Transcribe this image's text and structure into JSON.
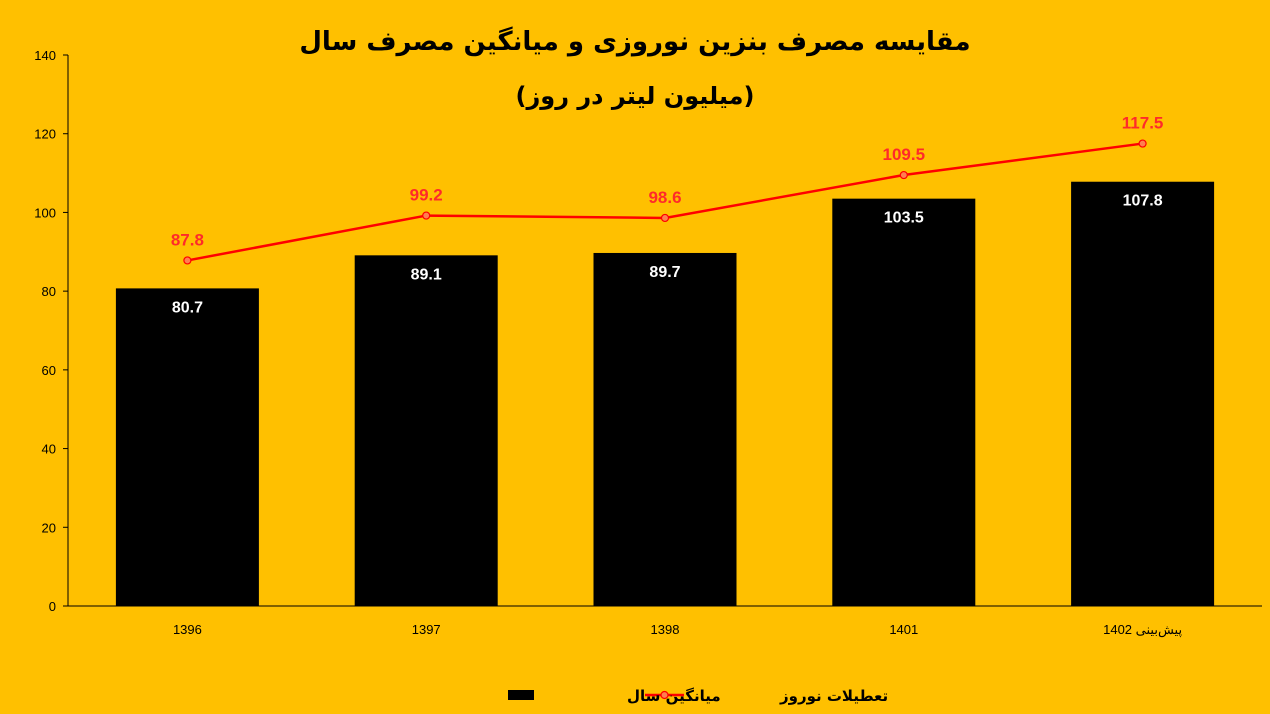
{
  "chart_data": {
    "type": "bar",
    "title": "مقایسه مصرف بنزین نوروزی و میانگین مصرف سال",
    "subtitle": "(میلیون لیتر در روز)",
    "categories": [
      "1396",
      "1397",
      "1398",
      "1401",
      "پیش‌بینی 1402"
    ],
    "series": [
      {
        "name": "میانگین سال",
        "type": "bar",
        "values": [
          80.7,
          89.1,
          89.7,
          103.5,
          107.8
        ],
        "color": "#000000",
        "label_color": "#FFFFFF"
      },
      {
        "name": "تعطیلات نوروز",
        "type": "line",
        "values": [
          87.8,
          99.2,
          98.6,
          109.5,
          117.5
        ],
        "color": "#FF0000",
        "label_color": "#FF2A2A"
      }
    ],
    "ylim": [
      0,
      140
    ],
    "yticks": [
      0,
      20,
      40,
      60,
      80,
      100,
      120,
      140
    ],
    "grid": false,
    "legend_position": "bottom",
    "background": "#FFC000"
  }
}
